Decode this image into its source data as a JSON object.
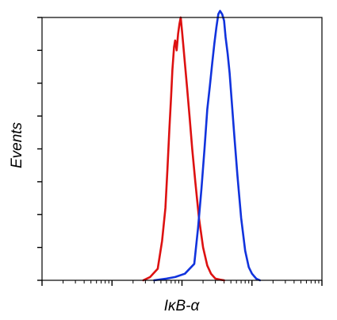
{
  "chart_data": {
    "type": "line",
    "title": "",
    "xlabel": "IκB-α",
    "ylabel": "Events",
    "x_scale": "log",
    "xlim": [
      1,
      10000
    ],
    "ylim": [
      0,
      8
    ],
    "grid": false,
    "legend": "none",
    "x_tick_labels": [],
    "y_tick_labels": [],
    "series": [
      {
        "color": "#dd1111",
        "x": [
          28,
          35,
          45,
          52,
          58,
          62,
          66,
          70,
          73,
          77,
          80,
          84,
          88,
          92,
          96,
          100,
          104,
          110,
          118,
          128,
          140,
          155,
          175,
          200,
          230,
          260,
          300,
          350,
          400
        ],
        "y": [
          0,
          0.1,
          0.35,
          1.2,
          2.2,
          3.4,
          4.6,
          5.6,
          6.4,
          7.1,
          7.3,
          7.0,
          7.5,
          7.8,
          8.0,
          7.6,
          7.2,
          6.6,
          5.9,
          5.0,
          4.0,
          3.0,
          1.9,
          1.0,
          0.45,
          0.2,
          0.05,
          0.02,
          0
        ]
      },
      {
        "color": "#1133dd",
        "x": [
          40,
          60,
          80,
          110,
          150,
          170,
          190,
          210,
          230,
          250,
          270,
          290,
          310,
          330,
          350,
          375,
          400,
          420,
          450,
          480,
          520,
          560,
          620,
          700,
          800,
          900,
          1000,
          1150,
          1300
        ],
        "y": [
          0,
          0.05,
          0.1,
          0.2,
          0.5,
          1.6,
          2.8,
          4.0,
          5.2,
          5.9,
          6.6,
          7.2,
          7.7,
          8.1,
          8.2,
          8.1,
          7.9,
          7.4,
          6.9,
          6.3,
          5.3,
          4.4,
          3.2,
          1.9,
          0.9,
          0.4,
          0.2,
          0.05,
          0
        ]
      }
    ]
  }
}
